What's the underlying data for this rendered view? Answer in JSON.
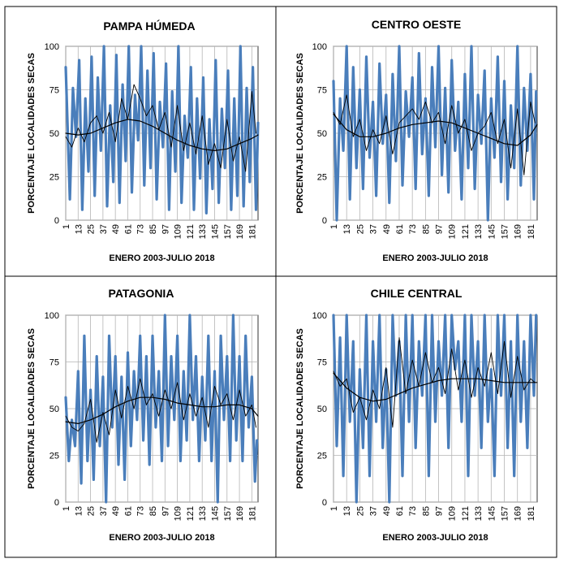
{
  "chart_data": [
    {
      "type": "line",
      "title": "PAMPA HÚMEDA",
      "xlabel": "ENERO 2003-JULIO 2018",
      "ylabel": "PORCENTAJE LOCALIDADES SECAS",
      "xlim": [
        1,
        187
      ],
      "ylim": [
        0,
        100
      ],
      "yticks": [
        0,
        25,
        50,
        75,
        100
      ],
      "xticks": [
        1,
        13,
        25,
        37,
        49,
        61,
        73,
        85,
        97,
        109,
        121,
        133,
        145,
        157,
        169,
        181
      ],
      "grid": true,
      "series": [
        {
          "role": "monthly",
          "color": "#4a7ebb",
          "x": [
            1,
            5,
            8,
            11,
            14,
            17,
            20,
            23,
            26,
            29,
            32,
            35,
            38,
            41,
            44,
            47,
            50,
            53,
            56,
            59,
            62,
            65,
            68,
            71,
            74,
            77,
            80,
            83,
            86,
            89,
            92,
            95,
            98,
            101,
            104,
            107,
            110,
            113,
            116,
            119,
            122,
            125,
            128,
            131,
            134,
            137,
            140,
            143,
            146,
            149,
            152,
            155,
            158,
            161,
            164,
            167,
            170,
            173,
            176,
            179,
            182,
            185,
            187
          ],
          "values": [
            88,
            12,
            76,
            48,
            92,
            6,
            70,
            28,
            94,
            14,
            82,
            40,
            100,
            8,
            66,
            22,
            95,
            10,
            78,
            34,
            100,
            16,
            72,
            46,
            100,
            20,
            86,
            30,
            96,
            12,
            68,
            42,
            90,
            6,
            74,
            28,
            100,
            10,
            60,
            36,
            88,
            6,
            70,
            24,
            82,
            4,
            58,
            18,
            92,
            10,
            64,
            30,
            86,
            6,
            70,
            14,
            100,
            8,
            76,
            22,
            88,
            6,
            56
          ]
        },
        {
          "role": "moving_average",
          "color": "#000000",
          "x": [
            1,
            7,
            13,
            19,
            25,
            31,
            37,
            43,
            49,
            55,
            61,
            67,
            73,
            79,
            85,
            91,
            97,
            103,
            109,
            115,
            121,
            127,
            133,
            139,
            145,
            151,
            157,
            163,
            169,
            175,
            181,
            185
          ],
          "values": [
            48,
            42,
            53,
            45,
            56,
            60,
            50,
            62,
            45,
            70,
            58,
            78,
            70,
            60,
            66,
            52,
            62,
            42,
            66,
            40,
            56,
            38,
            60,
            32,
            44,
            30,
            58,
            34,
            48,
            28,
            74,
            50
          ]
        },
        {
          "role": "trend",
          "color": "#000000",
          "x": [
            1,
            13,
            25,
            37,
            49,
            61,
            73,
            85,
            97,
            109,
            121,
            133,
            145,
            157,
            169,
            181,
            187
          ],
          "values": [
            50,
            49,
            50,
            53,
            56,
            58,
            57,
            54,
            50,
            46,
            43,
            41,
            40,
            41,
            44,
            47,
            49
          ]
        }
      ]
    },
    {
      "type": "line",
      "title": "CENTRO OESTE",
      "xlabel": "ENERO 2003-JULIO 2018",
      "ylabel": "PORCENTAJE LOCALIDADES SECAS",
      "xlim": [
        1,
        187
      ],
      "ylim": [
        0,
        100
      ],
      "yticks": [
        0,
        25,
        50,
        75,
        100
      ],
      "xticks": [
        1,
        13,
        25,
        37,
        49,
        61,
        73,
        85,
        97,
        109,
        121,
        133,
        145,
        157,
        169,
        181
      ],
      "grid": true,
      "series": [
        {
          "role": "monthly",
          "color": "#4a7ebb",
          "x": [
            1,
            4,
            7,
            10,
            13,
            16,
            19,
            22,
            25,
            28,
            31,
            34,
            37,
            40,
            43,
            46,
            49,
            52,
            55,
            58,
            61,
            64,
            67,
            70,
            73,
            76,
            79,
            82,
            85,
            88,
            91,
            94,
            97,
            100,
            103,
            106,
            109,
            112,
            115,
            118,
            121,
            124,
            127,
            130,
            133,
            136,
            139,
            142,
            145,
            148,
            151,
            154,
            157,
            160,
            163,
            166,
            169,
            172,
            175,
            178,
            181,
            184,
            186
          ],
          "values": [
            80,
            0,
            70,
            40,
            100,
            12,
            88,
            30,
            75,
            18,
            94,
            36,
            68,
            14,
            90,
            44,
            72,
            10,
            84,
            34,
            100,
            20,
            74,
            48,
            82,
            18,
            96,
            38,
            70,
            14,
            88,
            42,
            100,
            26,
            76,
            16,
            92,
            40,
            68,
            12,
            84,
            30,
            100,
            18,
            72,
            44,
            86,
            0,
            70,
            36,
            94,
            22,
            80,
            12,
            66,
            30,
            100,
            20,
            76,
            40,
            84,
            12,
            74
          ]
        },
        {
          "role": "moving_average",
          "color": "#000000",
          "x": [
            1,
            7,
            13,
            19,
            25,
            31,
            37,
            43,
            49,
            55,
            61,
            67,
            73,
            79,
            85,
            91,
            97,
            103,
            109,
            115,
            121,
            127,
            133,
            139,
            145,
            151,
            157,
            163,
            169,
            175,
            181,
            185
          ],
          "values": [
            62,
            55,
            72,
            48,
            58,
            40,
            52,
            44,
            60,
            38,
            56,
            60,
            64,
            58,
            68,
            56,
            62,
            44,
            66,
            50,
            58,
            40,
            50,
            54,
            62,
            44,
            58,
            30,
            64,
            26,
            68,
            56
          ]
        },
        {
          "role": "trend",
          "color": "#000000",
          "x": [
            1,
            13,
            25,
            37,
            49,
            61,
            73,
            85,
            97,
            109,
            121,
            133,
            145,
            157,
            169,
            181,
            187
          ],
          "values": [
            61,
            52,
            48,
            48,
            50,
            53,
            55,
            56,
            57,
            56,
            53,
            50,
            47,
            44,
            43,
            49,
            55
          ]
        }
      ]
    },
    {
      "type": "line",
      "title": "PATAGONIA",
      "xlabel": "ENERO 2003-JULIO 2018",
      "ylabel": "PORCENTAJE LOCALIDADES SECAS",
      "xlim": [
        1,
        187
      ],
      "ylim": [
        0,
        100
      ],
      "yticks": [
        0,
        25,
        50,
        75,
        100
      ],
      "xticks": [
        1,
        13,
        25,
        37,
        49,
        61,
        73,
        85,
        97,
        109,
        121,
        133,
        145,
        157,
        169,
        181
      ],
      "grid": true,
      "series": [
        {
          "role": "monthly",
          "color": "#4a7ebb",
          "x": [
            1,
            4,
            7,
            10,
            13,
            16,
            19,
            22,
            25,
            28,
            31,
            34,
            37,
            40,
            43,
            46,
            49,
            52,
            55,
            58,
            61,
            64,
            67,
            70,
            73,
            76,
            79,
            82,
            85,
            88,
            91,
            94,
            97,
            100,
            103,
            106,
            109,
            112,
            115,
            118,
            121,
            124,
            127,
            130,
            133,
            136,
            139,
            142,
            145,
            148,
            151,
            154,
            157,
            160,
            163,
            166,
            169,
            172,
            175,
            178,
            181,
            184,
            186
          ],
          "values": [
            56,
            22,
            44,
            30,
            70,
            10,
            89,
            22,
            60,
            12,
            78,
            30,
            67,
            0,
            89,
            40,
            78,
            20,
            67,
            12,
            80,
            30,
            70,
            44,
            89,
            33,
            78,
            20,
            89,
            40,
            70,
            22,
            100,
            30,
            78,
            44,
            89,
            22,
            70,
            33,
            100,
            44,
            78,
            22,
            67,
            33,
            89,
            22,
            70,
            0,
            89,
            44,
            78,
            22,
            100,
            33,
            78,
            22,
            89,
            40,
            67,
            11,
            33
          ]
        },
        {
          "role": "moving_average",
          "color": "#000000",
          "x": [
            1,
            7,
            13,
            19,
            25,
            31,
            37,
            43,
            49,
            55,
            61,
            67,
            73,
            79,
            85,
            91,
            97,
            103,
            109,
            115,
            121,
            127,
            133,
            139,
            145,
            151,
            157,
            163,
            169,
            175,
            181,
            185
          ],
          "values": [
            46,
            40,
            38,
            42,
            55,
            32,
            48,
            36,
            60,
            45,
            62,
            50,
            66,
            52,
            58,
            46,
            60,
            50,
            64,
            44,
            58,
            46,
            56,
            40,
            62,
            52,
            58,
            44,
            60,
            46,
            52,
            40
          ]
        },
        {
          "role": "trend",
          "color": "#000000",
          "x": [
            1,
            13,
            25,
            37,
            49,
            61,
            73,
            85,
            97,
            109,
            121,
            133,
            145,
            157,
            169,
            181,
            187
          ],
          "values": [
            43,
            42,
            44,
            47,
            51,
            54,
            56,
            56,
            55,
            53,
            52,
            51,
            51,
            52,
            52,
            50,
            46
          ]
        }
      ]
    },
    {
      "type": "line",
      "title": "CHILE CENTRAL",
      "xlabel": "ENERO 2003-JULIO 2018",
      "ylabel": "PORCENTAJE LOCALIDADES SECAS",
      "xlim": [
        1,
        187
      ],
      "ylim": [
        0,
        100
      ],
      "yticks": [
        0,
        25,
        50,
        75,
        100
      ],
      "xticks": [
        1,
        13,
        25,
        37,
        49,
        61,
        73,
        85,
        97,
        109,
        121,
        133,
        145,
        157,
        169,
        181
      ],
      "grid": true,
      "series": [
        {
          "role": "monthly",
          "color": "#4a7ebb",
          "x": [
            1,
            4,
            7,
            10,
            13,
            16,
            19,
            22,
            25,
            28,
            31,
            34,
            37,
            40,
            43,
            46,
            49,
            52,
            55,
            58,
            61,
            64,
            67,
            70,
            73,
            76,
            79,
            82,
            85,
            88,
            91,
            94,
            97,
            100,
            103,
            106,
            109,
            112,
            115,
            118,
            121,
            124,
            127,
            130,
            133,
            136,
            139,
            142,
            145,
            148,
            151,
            154,
            157,
            160,
            163,
            166,
            169,
            172,
            175,
            178,
            181,
            184,
            186
          ],
          "values": [
            100,
            30,
            88,
            14,
            100,
            43,
            86,
            0,
            71,
            29,
            100,
            14,
            86,
            43,
            100,
            29,
            71,
            0,
            100,
            57,
            86,
            14,
            100,
            43,
            100,
            29,
            86,
            57,
            100,
            14,
            100,
            43,
            86,
            57,
            100,
            29,
            100,
            71,
            86,
            43,
            100,
            14,
            100,
            57,
            86,
            29,
            100,
            43,
            71,
            14,
            100,
            57,
            100,
            29,
            86,
            14,
            100,
            43,
            86,
            29,
            100,
            57,
            100
          ]
        },
        {
          "role": "moving_average",
          "color": "#000000",
          "x": [
            1,
            7,
            13,
            19,
            25,
            31,
            37,
            43,
            49,
            55,
            61,
            67,
            73,
            79,
            85,
            91,
            97,
            103,
            109,
            115,
            121,
            127,
            133,
            139,
            145,
            151,
            157,
            163,
            169,
            175,
            181,
            185
          ],
          "values": [
            70,
            62,
            66,
            48,
            56,
            44,
            60,
            50,
            72,
            40,
            88,
            58,
            76,
            62,
            80,
            64,
            72,
            58,
            82,
            60,
            76,
            56,
            72,
            62,
            80,
            58,
            86,
            56,
            78,
            60,
            66,
            64
          ]
        },
        {
          "role": "trend",
          "color": "#000000",
          "x": [
            1,
            13,
            25,
            37,
            49,
            61,
            73,
            85,
            97,
            109,
            121,
            133,
            145,
            157,
            169,
            181,
            187
          ],
          "values": [
            69,
            61,
            56,
            54,
            55,
            58,
            61,
            63,
            65,
            66,
            66,
            66,
            65,
            64,
            64,
            64,
            64
          ]
        }
      ]
    }
  ]
}
